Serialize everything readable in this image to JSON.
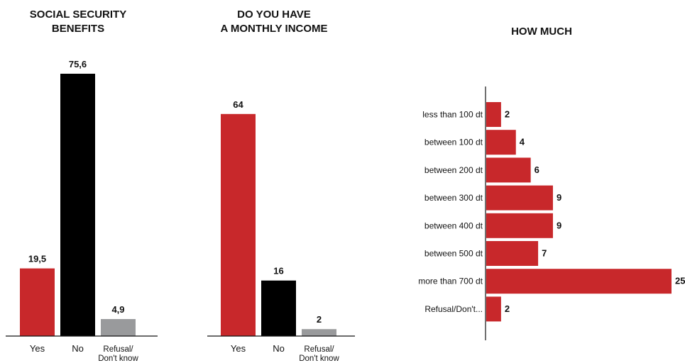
{
  "colors": {
    "red": "#c8282b",
    "black": "#000000",
    "gray": "#999a9c"
  },
  "chart_data": [
    {
      "type": "bar",
      "title": [
        "SOCIAL SECURITY",
        "BENEFITS"
      ],
      "categories": [
        [
          "Yes"
        ],
        [
          "No"
        ],
        [
          "Refusal/",
          "Don't know"
        ]
      ],
      "values": [
        19.5,
        75.6,
        4.9
      ],
      "value_labels": [
        "19,5",
        "75,6",
        "4,9"
      ],
      "bar_colors": [
        "red",
        "black",
        "gray"
      ],
      "ylim": [
        0,
        80
      ],
      "grid": false
    },
    {
      "type": "bar",
      "title": [
        "DO YOU HAVE",
        "A MONTHLY INCOME"
      ],
      "categories": [
        [
          "Yes"
        ],
        [
          "No"
        ],
        [
          "Refusal/",
          "Don't know"
        ]
      ],
      "values": [
        64,
        16,
        2
      ],
      "value_labels": [
        "64",
        "16",
        "2"
      ],
      "bar_colors": [
        "red",
        "black",
        "gray"
      ],
      "ylim": [
        0,
        80
      ],
      "grid": false
    },
    {
      "type": "bar",
      "orientation": "horizontal",
      "title": [
        "HOW MUCH"
      ],
      "categories": [
        "less than 100 dt",
        "between 100 dt",
        "between 200 dt",
        "between 300 dt",
        "between 400 dt",
        "between 500 dt",
        "more than 700 dt",
        "Refusal/Don't..."
      ],
      "values": [
        2,
        4,
        6,
        9,
        9,
        7,
        25,
        2
      ],
      "value_labels": [
        "2",
        "4",
        "6",
        "9",
        "9",
        "7",
        "25",
        "2"
      ],
      "bar_color": "red",
      "xlim": [
        0,
        25
      ],
      "grid": false
    }
  ]
}
